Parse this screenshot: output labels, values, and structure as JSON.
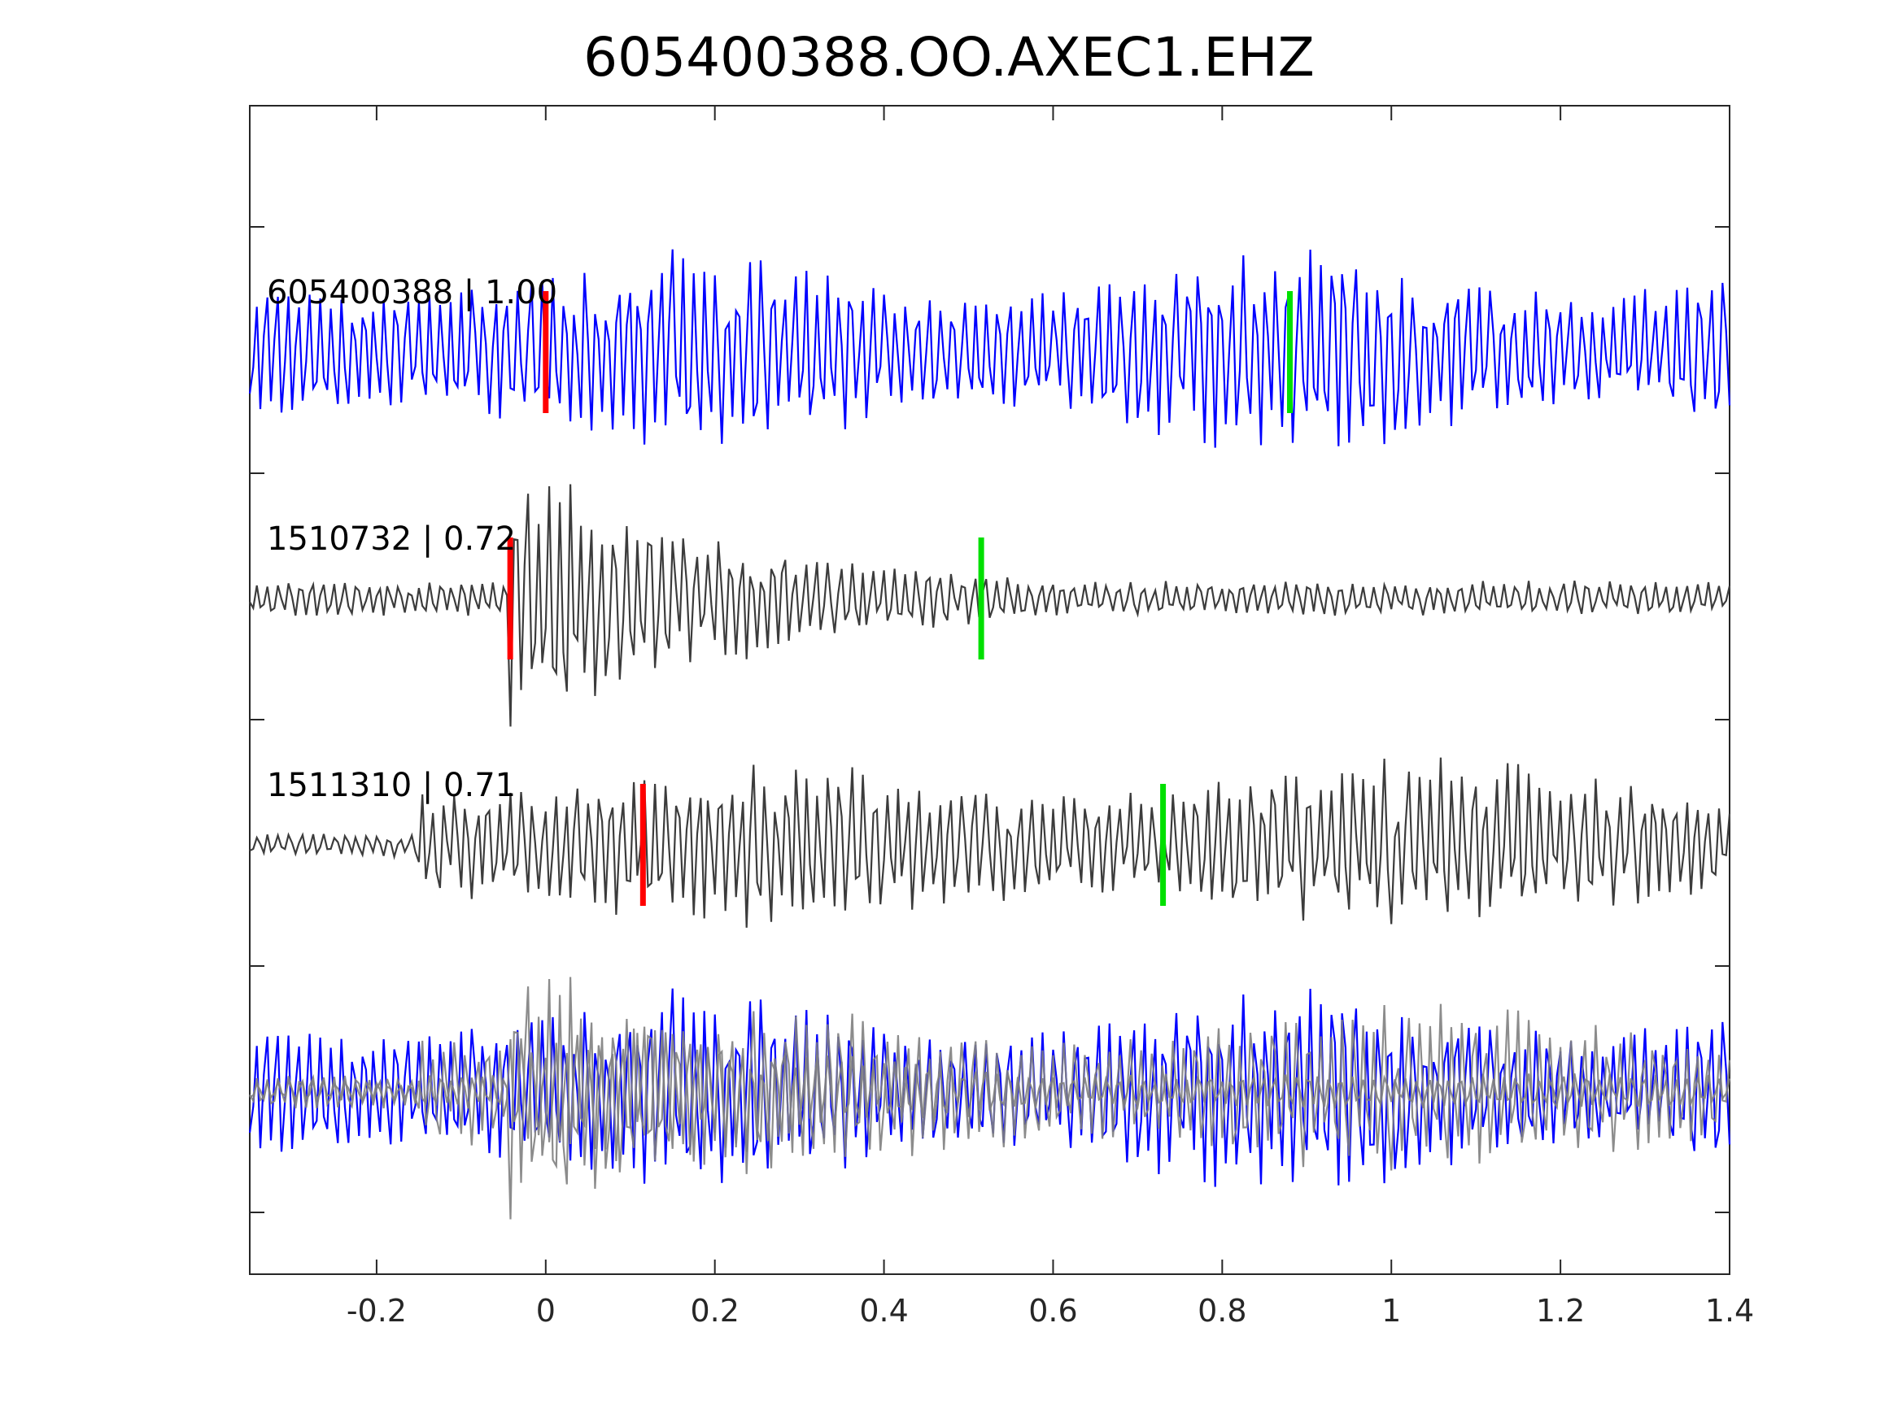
{
  "chart_data": {
    "type": "line",
    "title": "605400388.OO.AXEC1.EHZ",
    "xlabel": "",
    "ylabel": "",
    "xlim": [
      -0.35,
      1.4
    ],
    "x_ticks": [
      "-0.2",
      "0",
      "0.2",
      "0.4",
      "0.6",
      "0.8",
      "1",
      "1.2",
      "1.4"
    ],
    "x_tick_values": [
      -0.2,
      0,
      0.2,
      0.4,
      0.6,
      0.8,
      1.0,
      1.2,
      1.4
    ],
    "y_ticks_labeled": false,
    "grid": false,
    "colors": {
      "template": "#0000ff",
      "match": "#3c3c3c",
      "overlay_match": "#808080",
      "p_pick": "#ff0000",
      "s_pick": "#00e000",
      "axes": "#262626"
    },
    "traces": [
      {
        "name": "605400388 | 1.00",
        "station_event": "605400388",
        "correlation": 1.0,
        "p_pick": 0.0,
        "s_pick": 0.88,
        "color": "#0000ff",
        "character": "noisy-uniform",
        "seed": 7
      },
      {
        "name": "1510732 | 0.72",
        "station_event": "1510732",
        "correlation": 0.72,
        "p_pick": -0.042,
        "s_pick": 0.515,
        "color": "#3c3c3c",
        "character": "impulsive-early",
        "seed": 23
      },
      {
        "name": "1511310 | 0.71",
        "station_event": "1511310",
        "correlation": 0.71,
        "p_pick": 0.115,
        "s_pick": 0.73,
        "color": "#3c3c3c",
        "character": "emergent",
        "seed": 41
      }
    ],
    "overlay_panel": {
      "description_visible": false,
      "traces": [
        "605400388 | 1.00",
        "1510732 | 0.72",
        "1511310 | 0.71"
      ]
    }
  }
}
